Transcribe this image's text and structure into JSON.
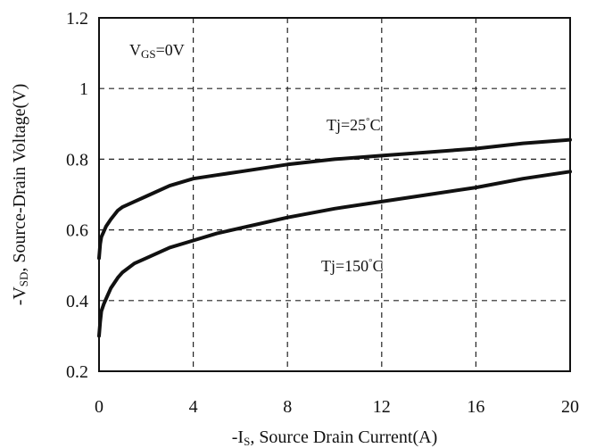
{
  "chart_data": {
    "type": "line",
    "xlabel": {
      "prefix": "-I",
      "sub": "S",
      "suffix": ", Source Drain Current(A)"
    },
    "ylabel": {
      "prefix": "-V",
      "sub": "SD",
      "suffix": ", Source-Drain Voltage(V)"
    },
    "xlim": [
      0,
      20
    ],
    "ylim": [
      0.2,
      1.2
    ],
    "x_ticks": [
      "0",
      "4",
      "8",
      "12",
      "16",
      "20"
    ],
    "y_ticks": [
      "0.2",
      "0.4",
      "0.6",
      "0.8",
      "1",
      "1.2"
    ],
    "grid": true,
    "condition": {
      "prefix": "V",
      "sub": "GS",
      "suffix": "=0V"
    },
    "series": [
      {
        "label_text": {
          "prefix": "Tj=25",
          "sup": "°",
          "suffix": "C"
        },
        "color": "#111111",
        "x": [
          0.0,
          0.05,
          0.1,
          0.2,
          0.3,
          0.5,
          0.8,
          1,
          1.5,
          2,
          3,
          4,
          5,
          6,
          8,
          10,
          12,
          14,
          16,
          18,
          20
        ],
        "y": [
          0.52,
          0.56,
          0.58,
          0.595,
          0.61,
          0.63,
          0.655,
          0.665,
          0.68,
          0.695,
          0.725,
          0.745,
          0.755,
          0.765,
          0.785,
          0.8,
          0.81,
          0.82,
          0.83,
          0.845,
          0.855
        ]
      },
      {
        "label_text": {
          "prefix": "Tj=150",
          "sup": "°",
          "suffix": "C"
        },
        "color": "#111111",
        "x": [
          0.0,
          0.05,
          0.1,
          0.2,
          0.3,
          0.5,
          0.8,
          1,
          1.5,
          2,
          3,
          4,
          5,
          6,
          8,
          10,
          12,
          14,
          16,
          18,
          20
        ],
        "y": [
          0.3,
          0.34,
          0.37,
          0.39,
          0.405,
          0.435,
          0.465,
          0.48,
          0.505,
          0.52,
          0.55,
          0.57,
          0.59,
          0.605,
          0.635,
          0.66,
          0.68,
          0.7,
          0.72,
          0.745,
          0.765
        ]
      }
    ]
  }
}
